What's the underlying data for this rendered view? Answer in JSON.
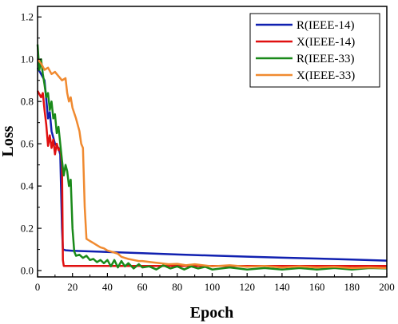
{
  "chart_data": {
    "type": "line",
    "xlabel": "Epoch",
    "ylabel": "Loss",
    "xlim": [
      0,
      200
    ],
    "ylim": [
      -0.03,
      1.25
    ],
    "xticks": [
      0,
      20,
      40,
      60,
      80,
      100,
      120,
      140,
      160,
      180,
      200
    ],
    "yticks": [
      0.0,
      0.2,
      0.4,
      0.6,
      0.8,
      1.0,
      1.2
    ],
    "xtick_labels": [
      "0",
      "20",
      "40",
      "60",
      "80",
      "100",
      "120",
      "140",
      "160",
      "180",
      "200"
    ],
    "ytick_labels": [
      "0.0",
      "0.2",
      "0.4",
      "0.6",
      "0.8",
      "1.0",
      "1.2"
    ],
    "grid": false,
    "legend_position": "top-right",
    "series": [
      {
        "name": "R(IEEE-14)",
        "color": "#1020b0",
        "points": [
          [
            0,
            0.96
          ],
          [
            2,
            0.93
          ],
          [
            4,
            0.9
          ],
          [
            6,
            0.72
          ],
          [
            7,
            0.75
          ],
          [
            8,
            0.66
          ],
          [
            10,
            0.6
          ],
          [
            12,
            0.58
          ],
          [
            13,
            0.55
          ],
          [
            14,
            0.2
          ],
          [
            14.5,
            0.1
          ],
          [
            16,
            0.096
          ],
          [
            20,
            0.094
          ],
          [
            40,
            0.088
          ],
          [
            60,
            0.082
          ],
          [
            80,
            0.076
          ],
          [
            100,
            0.071
          ],
          [
            120,
            0.066
          ],
          [
            140,
            0.061
          ],
          [
            160,
            0.057
          ],
          [
            180,
            0.052
          ],
          [
            200,
            0.047
          ]
        ]
      },
      {
        "name": "X(IEEE-14)",
        "color": "#e01010",
        "points": [
          [
            0,
            0.85
          ],
          [
            2,
            0.82
          ],
          [
            3,
            0.84
          ],
          [
            4,
            0.76
          ],
          [
            5,
            0.69
          ],
          [
            6,
            0.59
          ],
          [
            7,
            0.64
          ],
          [
            8,
            0.58
          ],
          [
            9,
            0.62
          ],
          [
            10,
            0.55
          ],
          [
            11,
            0.6
          ],
          [
            12,
            0.57
          ],
          [
            13,
            0.58
          ],
          [
            14,
            0.5
          ],
          [
            14.5,
            0.05
          ],
          [
            15,
            0.022
          ],
          [
            40,
            0.022
          ],
          [
            80,
            0.022
          ],
          [
            120,
            0.022
          ],
          [
            160,
            0.022
          ],
          [
            200,
            0.022
          ]
        ]
      },
      {
        "name": "R(IEEE-33)",
        "color": "#1a8a1a",
        "points": [
          [
            0,
            1.07
          ],
          [
            1,
            0.95
          ],
          [
            2,
            1.0
          ],
          [
            3,
            0.93
          ],
          [
            4,
            0.88
          ],
          [
            5,
            0.82
          ],
          [
            6,
            0.84
          ],
          [
            7,
            0.76
          ],
          [
            8,
            0.8
          ],
          [
            9,
            0.72
          ],
          [
            10,
            0.74
          ],
          [
            11,
            0.65
          ],
          [
            12,
            0.68
          ],
          [
            13,
            0.6
          ],
          [
            14,
            0.52
          ],
          [
            15,
            0.45
          ],
          [
            16,
            0.5
          ],
          [
            17,
            0.47
          ],
          [
            18,
            0.4
          ],
          [
            19,
            0.43
          ],
          [
            20,
            0.2
          ],
          [
            21,
            0.09
          ],
          [
            22,
            0.07
          ],
          [
            24,
            0.075
          ],
          [
            26,
            0.06
          ],
          [
            28,
            0.07
          ],
          [
            30,
            0.05
          ],
          [
            32,
            0.055
          ],
          [
            34,
            0.04
          ],
          [
            36,
            0.05
          ],
          [
            38,
            0.035
          ],
          [
            40,
            0.05
          ],
          [
            42,
            0.02
          ],
          [
            44,
            0.05
          ],
          [
            46,
            0.015
          ],
          [
            48,
            0.045
          ],
          [
            50,
            0.02
          ],
          [
            52,
            0.035
          ],
          [
            55,
            0.01
          ],
          [
            58,
            0.03
          ],
          [
            60,
            0.015
          ],
          [
            64,
            0.02
          ],
          [
            68,
            0.005
          ],
          [
            72,
            0.025
          ],
          [
            76,
            0.01
          ],
          [
            80,
            0.02
          ],
          [
            84,
            0.005
          ],
          [
            88,
            0.02
          ],
          [
            92,
            0.01
          ],
          [
            96,
            0.018
          ],
          [
            100,
            0.005
          ],
          [
            110,
            0.015
          ],
          [
            120,
            0.005
          ],
          [
            130,
            0.012
          ],
          [
            140,
            0.005
          ],
          [
            150,
            0.012
          ],
          [
            160,
            0.005
          ],
          [
            170,
            0.012
          ],
          [
            180,
            0.005
          ],
          [
            190,
            0.012
          ],
          [
            200,
            0.01
          ]
        ]
      },
      {
        "name": "X(IEEE-33)",
        "color": "#f08a30",
        "points": [
          [
            0,
            1.0
          ],
          [
            2,
            0.98
          ],
          [
            4,
            0.95
          ],
          [
            6,
            0.96
          ],
          [
            8,
            0.93
          ],
          [
            10,
            0.94
          ],
          [
            12,
            0.92
          ],
          [
            14,
            0.9
          ],
          [
            16,
            0.91
          ],
          [
            17,
            0.84
          ],
          [
            18,
            0.8
          ],
          [
            19,
            0.82
          ],
          [
            20,
            0.77
          ],
          [
            22,
            0.72
          ],
          [
            24,
            0.66
          ],
          [
            25,
            0.6
          ],
          [
            26,
            0.58
          ],
          [
            27,
            0.3
          ],
          [
            28,
            0.15
          ],
          [
            30,
            0.14
          ],
          [
            32,
            0.13
          ],
          [
            34,
            0.12
          ],
          [
            36,
            0.11
          ],
          [
            38,
            0.105
          ],
          [
            40,
            0.095
          ],
          [
            42,
            0.09
          ],
          [
            44,
            0.085
          ],
          [
            46,
            0.08
          ],
          [
            48,
            0.065
          ],
          [
            50,
            0.06
          ],
          [
            52,
            0.055
          ],
          [
            55,
            0.05
          ],
          [
            58,
            0.045
          ],
          [
            60,
            0.045
          ],
          [
            65,
            0.04
          ],
          [
            70,
            0.035
          ],
          [
            75,
            0.03
          ],
          [
            80,
            0.032
          ],
          [
            85,
            0.025
          ],
          [
            90,
            0.03
          ],
          [
            100,
            0.02
          ],
          [
            110,
            0.025
          ],
          [
            120,
            0.018
          ],
          [
            130,
            0.022
          ],
          [
            140,
            0.015
          ],
          [
            150,
            0.02
          ],
          [
            160,
            0.015
          ],
          [
            170,
            0.018
          ],
          [
            180,
            0.012
          ],
          [
            190,
            0.015
          ],
          [
            200,
            0.012
          ]
        ]
      }
    ]
  }
}
